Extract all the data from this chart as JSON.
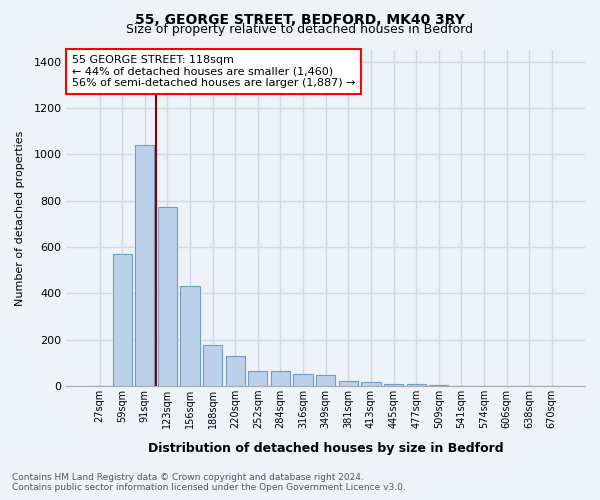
{
  "title1": "55, GEORGE STREET, BEDFORD, MK40 3RY",
  "title2": "Size of property relative to detached houses in Bedford",
  "xlabel": "Distribution of detached houses by size in Bedford",
  "ylabel": "Number of detached properties",
  "categories": [
    "27sqm",
    "59sqm",
    "91sqm",
    "123sqm",
    "156sqm",
    "188sqm",
    "220sqm",
    "252sqm",
    "284sqm",
    "316sqm",
    "349sqm",
    "381sqm",
    "413sqm",
    "445sqm",
    "477sqm",
    "509sqm",
    "541sqm",
    "574sqm",
    "606sqm",
    "638sqm",
    "670sqm"
  ],
  "bar_values": [
    0,
    570,
    1040,
    770,
    430,
    175,
    130,
    65,
    65,
    50,
    45,
    20,
    15,
    10,
    8,
    2,
    0,
    0,
    0,
    0,
    0
  ],
  "bar_color": "#bdd0e9",
  "bar_edge_color": "#6e9dc8",
  "red_line_x": 2.5,
  "red_line_label": "55 GEORGE STREET: 118sqm",
  "annotation_line1": "← 44% of detached houses are smaller (1,460)",
  "annotation_line2": "56% of semi-detached houses are larger (1,887) →",
  "ylim": [
    0,
    1450
  ],
  "yticks": [
    0,
    200,
    400,
    600,
    800,
    1000,
    1200,
    1400
  ],
  "footnote1": "Contains HM Land Registry data © Crown copyright and database right 2024.",
  "footnote2": "Contains public sector information licensed under the Open Government Licence v3.0.",
  "background_color": "#eef2f9",
  "plot_bg_color": "#eef2f9",
  "grid_color": "#d0d8e8"
}
